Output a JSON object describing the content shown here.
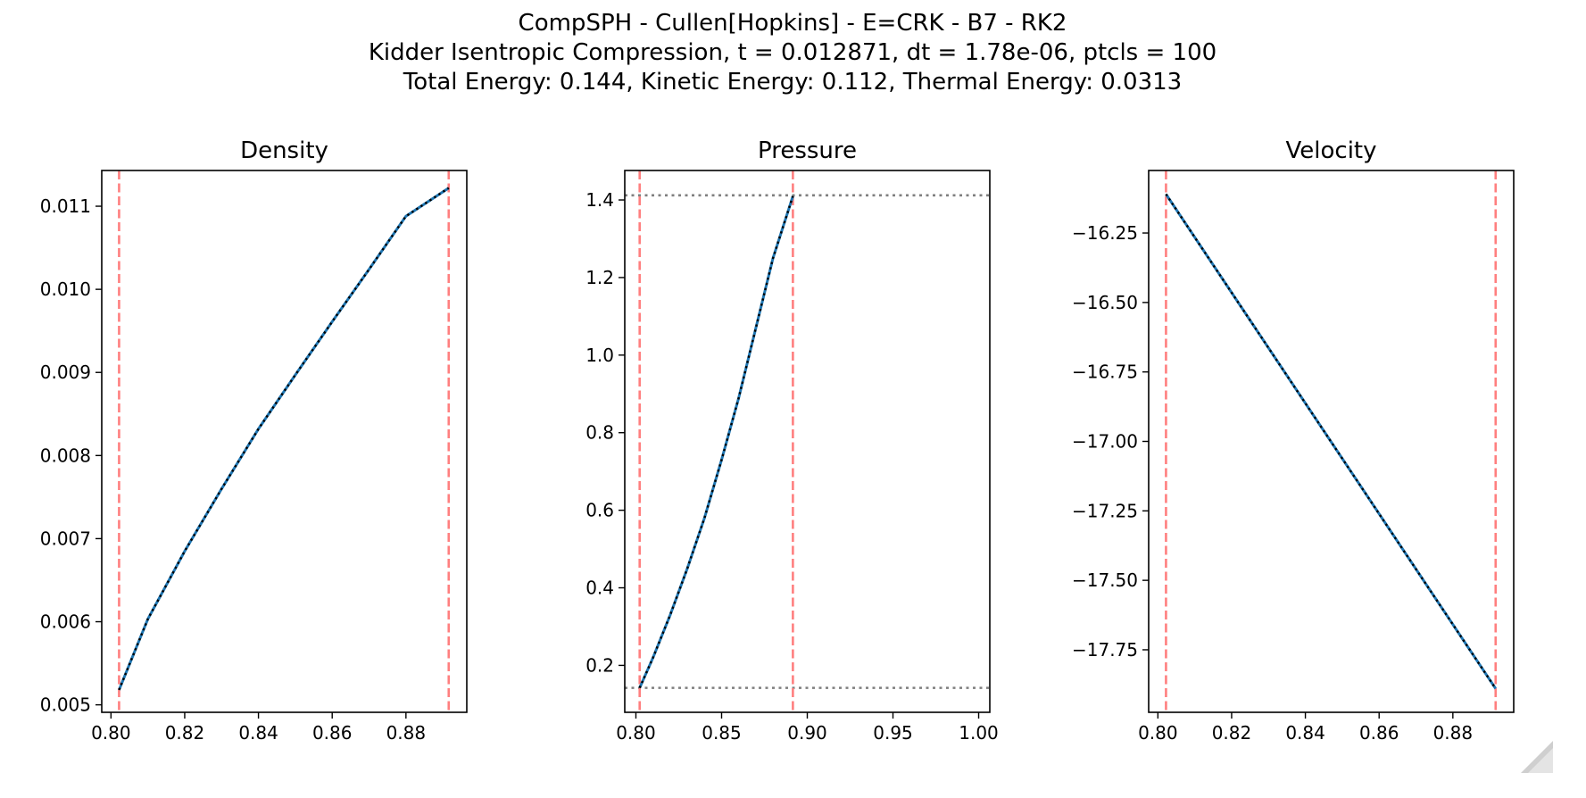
{
  "figure": {
    "suptitle_lines": [
      "CompSPH - Cullen[Hopkins] - E=CRK - B7 - RK2",
      "Kidder Isentropic Compression, t = 0.012871, dt = 1.78e-06, ptcls = 100",
      "Total Energy: 0.144, Kinetic Energy: 0.112, Thermal Energy: 0.0313"
    ]
  },
  "colors": {
    "boundary_line": "#ff7f7f",
    "reference_line": "#7f7f7f",
    "simulation_line": "#1f77b4",
    "analytic_line": "#000000",
    "axes": "#000000"
  },
  "chart_data": [
    {
      "type": "line",
      "title": "Density",
      "xlabel": "",
      "ylabel": "",
      "xlim": [
        0.7975,
        0.8965
      ],
      "ylim": [
        0.00491,
        0.01143
      ],
      "xticks": [
        0.8,
        0.82,
        0.84,
        0.86,
        0.88
      ],
      "xtick_labels": [
        "0.80",
        "0.82",
        "0.84",
        "0.86",
        "0.88"
      ],
      "yticks": [
        0.005,
        0.006,
        0.007,
        0.008,
        0.009,
        0.01,
        0.011
      ],
      "ytick_labels": [
        "0.005",
        "0.006",
        "0.007",
        "0.008",
        "0.009",
        "0.010",
        "0.011"
      ],
      "vlines": [
        0.8022,
        0.8916
      ],
      "hlines": [],
      "grid": false,
      "series": [
        {
          "style": "simulation",
          "x": [
            0.8022,
            0.81,
            0.82,
            0.83,
            0.84,
            0.85,
            0.86,
            0.87,
            0.88,
            0.8916
          ],
          "y": [
            0.00518,
            0.00603,
            0.00685,
            0.0076,
            0.00832,
            0.00897,
            0.00961,
            0.01024,
            0.01088,
            0.01122
          ]
        },
        {
          "style": "analytic",
          "x": [
            0.8022,
            0.81,
            0.82,
            0.83,
            0.84,
            0.85,
            0.86,
            0.87,
            0.88,
            0.8916
          ],
          "y": [
            0.00518,
            0.00603,
            0.00685,
            0.0076,
            0.00832,
            0.00897,
            0.00961,
            0.01024,
            0.01088,
            0.01122
          ]
        }
      ]
    },
    {
      "type": "line",
      "title": "Pressure",
      "xlabel": "",
      "ylabel": "",
      "xlim": [
        0.7935,
        1.0065
      ],
      "ylim": [
        0.079,
        1.476
      ],
      "xticks": [
        0.8,
        0.85,
        0.9,
        0.95,
        1.0
      ],
      "xtick_labels": [
        "0.80",
        "0.85",
        "0.90",
        "0.95",
        "1.00"
      ],
      "yticks": [
        0.2,
        0.4,
        0.6,
        0.8,
        1.0,
        1.2,
        1.4
      ],
      "ytick_labels": [
        "0.2",
        "0.4",
        "0.6",
        "0.8",
        "1.0",
        "1.2",
        "1.4"
      ],
      "vlines": [
        0.8022,
        0.8916
      ],
      "hlines": [
        0.142,
        1.412
      ],
      "grid": false,
      "series": [
        {
          "style": "simulation",
          "x": [
            0.8022,
            0.81,
            0.82,
            0.83,
            0.84,
            0.85,
            0.86,
            0.87,
            0.88,
            0.8916
          ],
          "y": [
            0.142,
            0.22,
            0.33,
            0.45,
            0.58,
            0.73,
            0.89,
            1.07,
            1.25,
            1.41
          ]
        },
        {
          "style": "analytic",
          "x": [
            0.8022,
            0.81,
            0.82,
            0.83,
            0.84,
            0.85,
            0.86,
            0.87,
            0.88,
            0.8916
          ],
          "y": [
            0.142,
            0.22,
            0.33,
            0.45,
            0.58,
            0.73,
            0.89,
            1.07,
            1.25,
            1.41
          ]
        }
      ]
    },
    {
      "type": "line",
      "title": "Velocity",
      "xlabel": "",
      "ylabel": "",
      "xlim": [
        0.7975,
        0.8965
      ],
      "ylim": [
        -17.975,
        -16.025
      ],
      "xticks": [
        0.8,
        0.82,
        0.84,
        0.86,
        0.88
      ],
      "xtick_labels": [
        "0.80",
        "0.82",
        "0.84",
        "0.86",
        "0.88"
      ],
      "yticks": [
        -16.25,
        -16.5,
        -16.75,
        -17.0,
        -17.25,
        -17.5,
        -17.75
      ],
      "ytick_labels": [
        "−16.25",
        "−16.50",
        "−16.75",
        "−17.00",
        "−17.25",
        "−17.50",
        "−17.75"
      ],
      "vlines": [
        0.8022,
        0.8916
      ],
      "hlines": [],
      "grid": false,
      "series": [
        {
          "style": "simulation",
          "x": [
            0.8022,
            0.8916
          ],
          "y": [
            -16.11,
            -17.89
          ]
        },
        {
          "style": "analytic",
          "x": [
            0.8022,
            0.8916
          ],
          "y": [
            -16.11,
            -17.89
          ]
        }
      ]
    }
  ]
}
